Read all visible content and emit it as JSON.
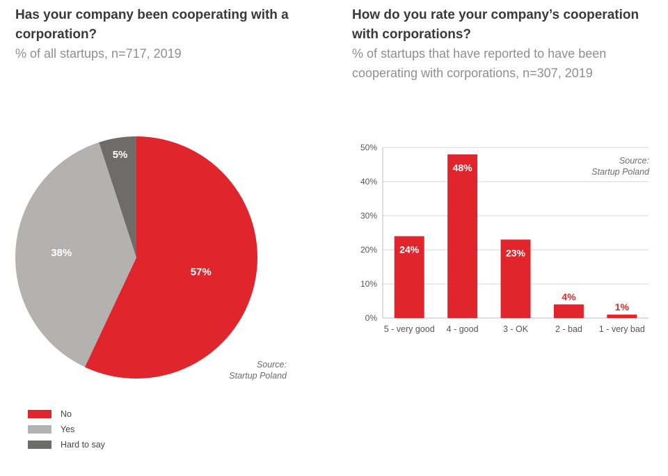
{
  "left": {
    "title": "Has your company been cooperating with a corporation?",
    "subtitle": "% of all startups, n=717, 2019",
    "source": [
      "Source:",
      "Startup Poland"
    ]
  },
  "right": {
    "title": "How do you rate your company’s cooperation with corporations?",
    "subtitle": "% of startups that have reported to have been cooperating with corporations, n=307, 2019",
    "source": [
      "Source:",
      "Startup Poland"
    ]
  },
  "legend": [
    {
      "label": "No",
      "color": "#e0252c"
    },
    {
      "label": "Yes",
      "color": "#b3b2b1"
    },
    {
      "label": "Hard to say",
      "color": "#6e6b69"
    }
  ],
  "chart_data": [
    {
      "type": "pie",
      "title": "Has your company been cooperating with a corporation?",
      "subtitle": "% of all startups, n=717, 2019",
      "categories": [
        "No",
        "Yes",
        "Hard to say"
      ],
      "values": [
        57,
        38,
        5
      ],
      "labels": [
        "57%",
        "38%",
        "5%"
      ],
      "colors": [
        "#e0252c",
        "#b3b2b1",
        "#6e6b69"
      ],
      "legend_position": "bottom-left"
    },
    {
      "type": "bar",
      "title": "How do you rate your company’s cooperation with corporations?",
      "subtitle": "% of startups that have reported to have been cooperating with corporations, n=307, 2019",
      "categories": [
        "5 - very good",
        "4 - good",
        "3 - OK",
        "2 - bad",
        "1 - very bad"
      ],
      "values": [
        24,
        48,
        23,
        4,
        1
      ],
      "labels": [
        "24%",
        "48%",
        "23%",
        "4%",
        "1%"
      ],
      "ylim": [
        0,
        50
      ],
      "yticks": [
        "0%",
        "10%",
        "20%",
        "30%",
        "40%",
        "50%"
      ],
      "grid": true,
      "color": "#e0252c"
    }
  ]
}
